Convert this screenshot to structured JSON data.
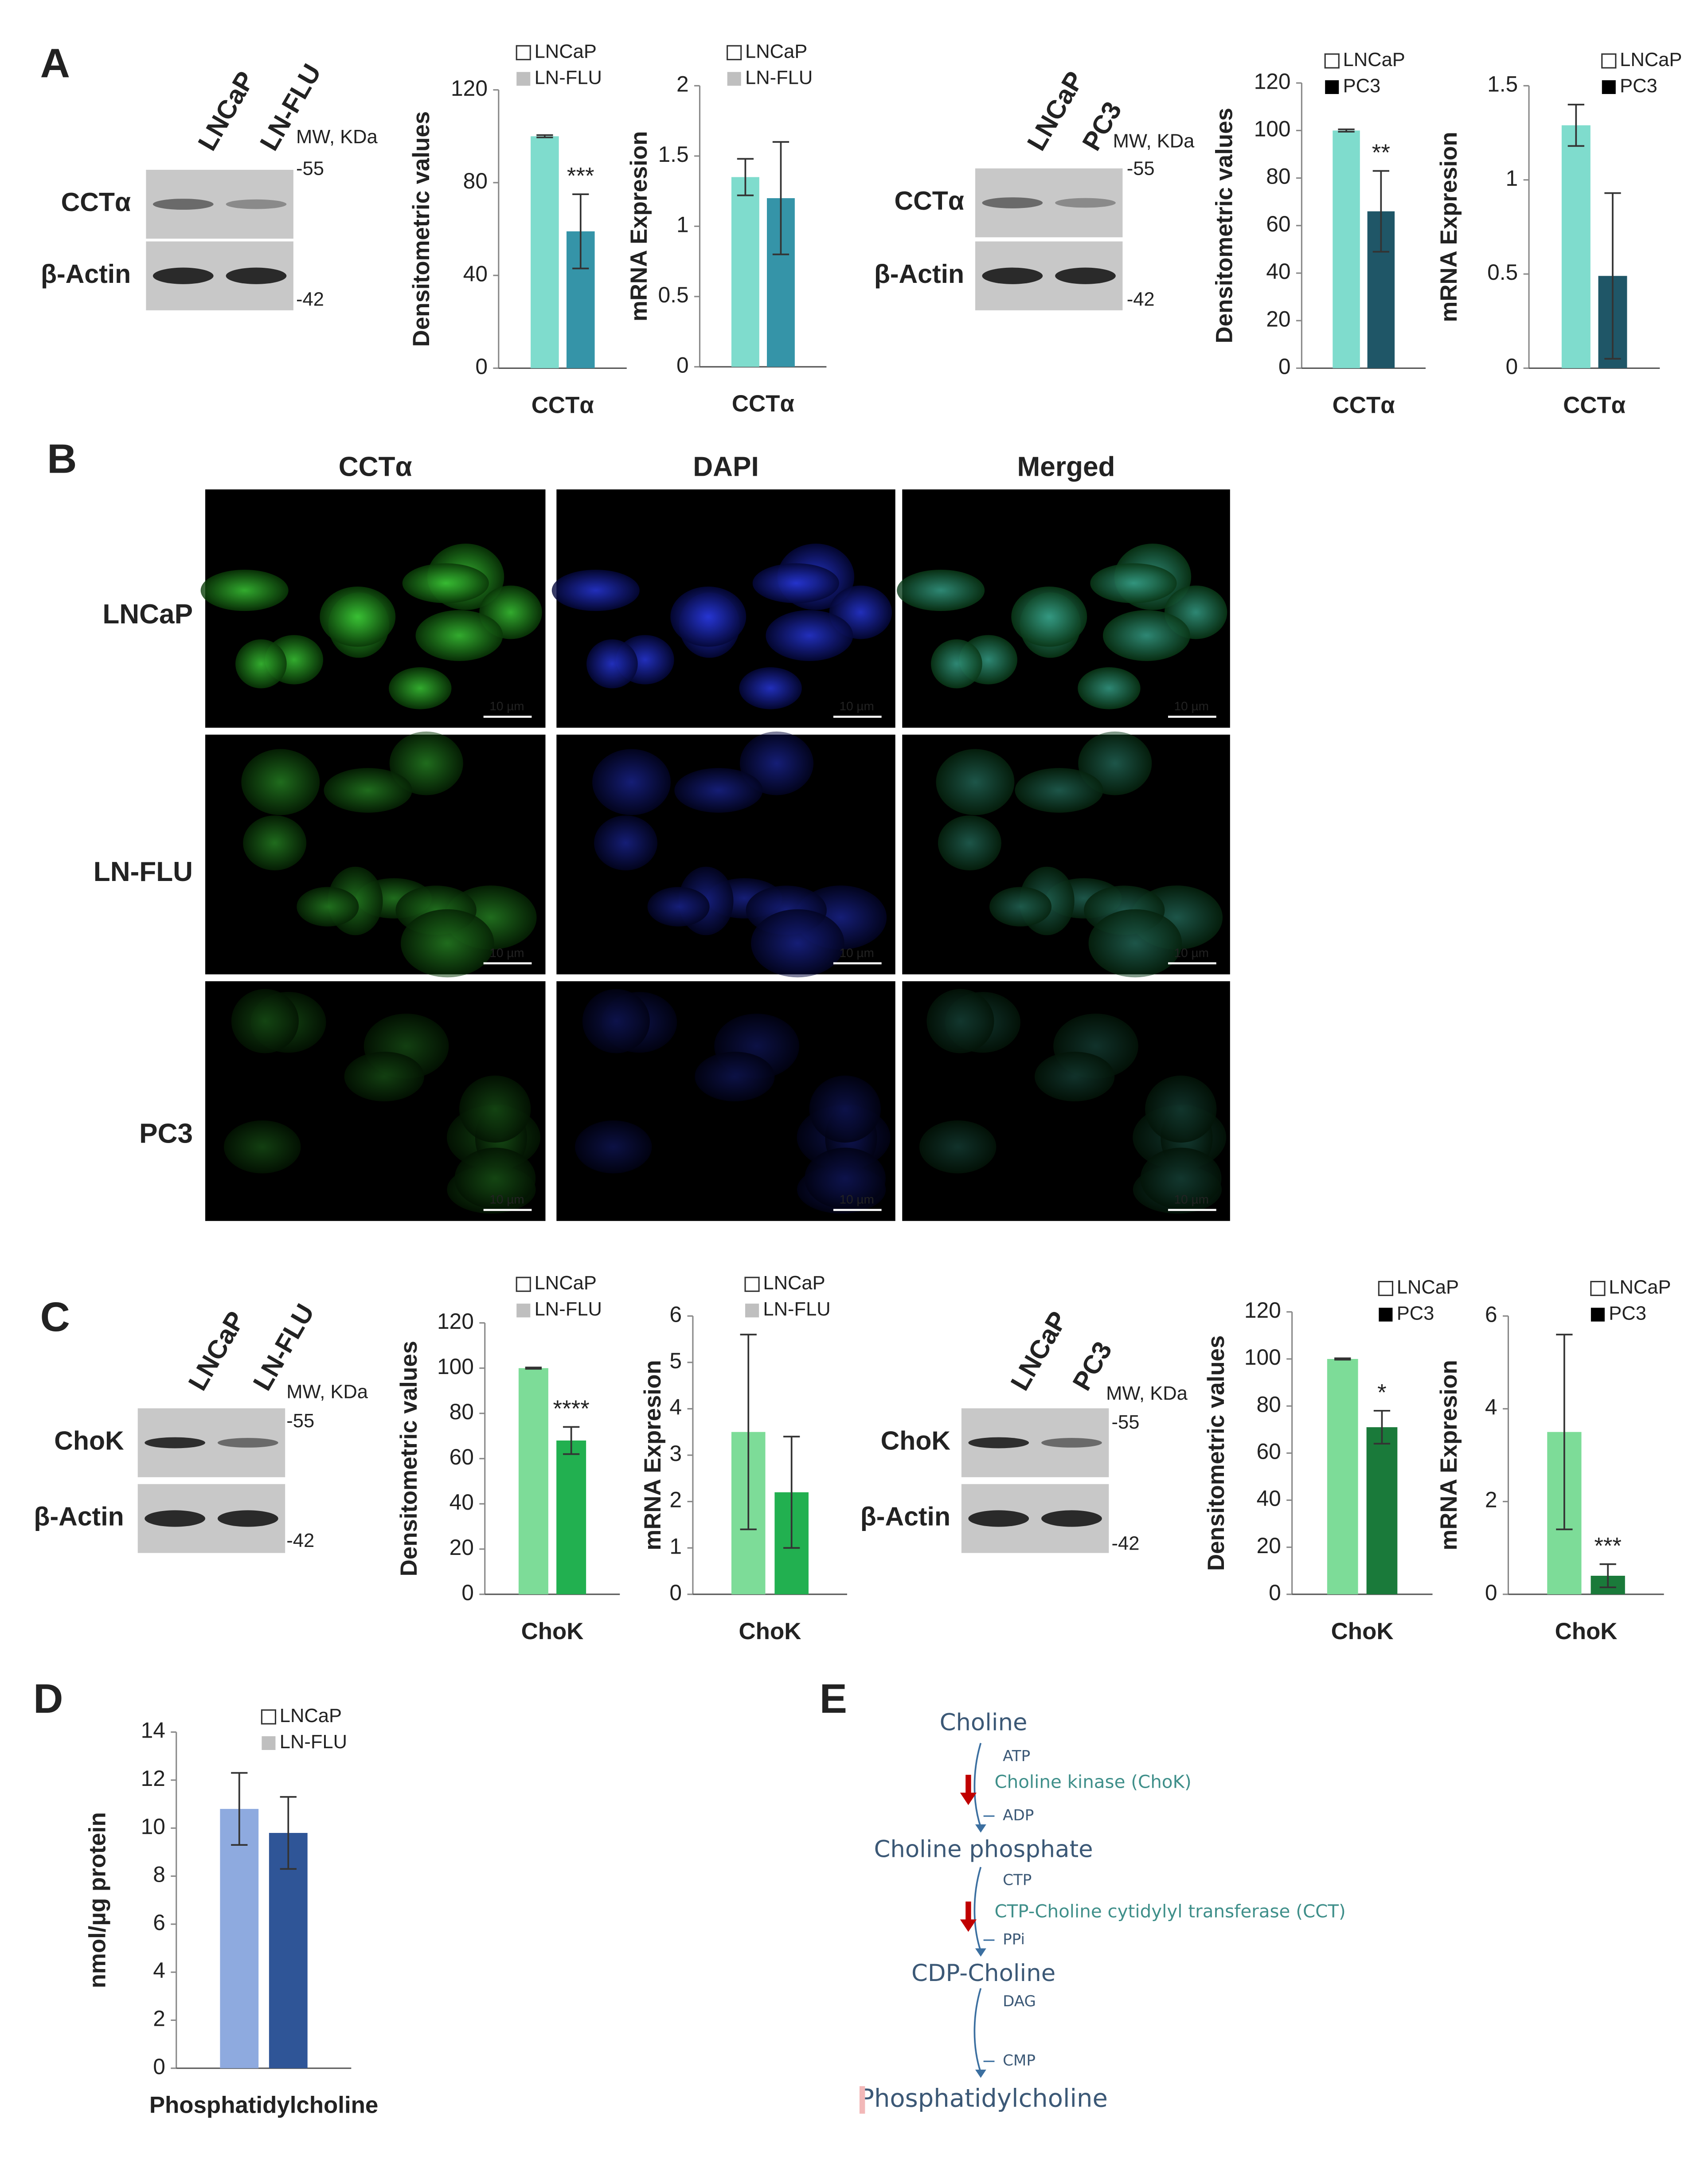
{
  "panels": [
    "A",
    "B",
    "C",
    "D",
    "E"
  ],
  "blots": [
    {
      "lanes": [
        "LNCaP",
        "LN-FLU"
      ],
      "unit": "MW, KDa",
      "markers": [
        "-55",
        "-42"
      ],
      "rows": [
        "CCTα",
        "β-Actin"
      ]
    },
    {
      "lanes": [
        "LNCaP",
        "PC3"
      ],
      "unit": "MW, KDa",
      "markers": [
        "-55",
        "-42"
      ],
      "rows": [
        "CCTα",
        "β-Actin"
      ]
    },
    {
      "lanes": [
        "LNCaP",
        "LN-FLU"
      ],
      "unit": "MW, KDa",
      "markers": [
        "-55",
        "-42"
      ],
      "rows": [
        "ChoK",
        "β-Actin"
      ]
    },
    {
      "lanes": [
        "LNCaP",
        "PC3"
      ],
      "unit": "MW, KDa",
      "markers": [
        "-55",
        "-42"
      ],
      "rows": [
        "ChoK",
        "β-Actin"
      ]
    }
  ],
  "microscopy": {
    "columns": [
      "CCTα",
      "DAPI",
      "Merged"
    ],
    "rows": [
      "LNCaP",
      "LN-FLU",
      "PC3"
    ],
    "scale_bar": "10 µm"
  },
  "pathway": {
    "metabolites": [
      "Choline",
      "Choline phosphate",
      "CDP-Choline",
      "Phosphatidylcholine"
    ],
    "enzymes": [
      "Choline kinase (ChoK)",
      "CTP-Choline cytidylyl transferase (CCT)"
    ],
    "cofactors": [
      [
        "ATP",
        "ADP"
      ],
      [
        "CTP",
        "PPi"
      ],
      [
        "DAG",
        "CMP"
      ]
    ]
  },
  "chart_data": [
    {
      "type": "bar",
      "categories": [
        "CCTα"
      ],
      "y_label": "Densitometric values",
      "ylim": [
        0,
        120
      ],
      "yticks": [
        0,
        40,
        80,
        120
      ],
      "legend_marker_colors": [
        "#ffffff",
        "#bfbfbf"
      ],
      "series": [
        {
          "name": "LNCaP",
          "color": "#7fdccd",
          "values": [
            100
          ],
          "errors": [
            0.5
          ]
        },
        {
          "name": "LN-FLU",
          "color": "#3594a8",
          "values": [
            59
          ],
          "errors": [
            16
          ],
          "significance": [
            "***"
          ]
        }
      ]
    },
    {
      "type": "bar",
      "categories": [
        "CCTα"
      ],
      "y_label": "mRNA Expresion",
      "ylim": [
        0,
        2
      ],
      "yticks": [
        0,
        0.5,
        1,
        1.5,
        2
      ],
      "legend_marker_colors": [
        "#ffffff",
        "#bfbfbf"
      ],
      "series": [
        {
          "name": "LNCaP",
          "color": "#7fdccd",
          "values": [
            1.35
          ],
          "errors": [
            0.13
          ]
        },
        {
          "name": "LN-FLU",
          "color": "#3594a8",
          "values": [
            1.2
          ],
          "errors": [
            0.4
          ]
        }
      ]
    },
    {
      "type": "bar",
      "categories": [
        "CCTα"
      ],
      "y_label": "Densitometric values",
      "ylim": [
        0,
        120
      ],
      "yticks": [
        0,
        20,
        40,
        60,
        80,
        100,
        120
      ],
      "legend_marker_colors": [
        "#ffffff",
        "#000000"
      ],
      "series": [
        {
          "name": "LNCaP",
          "color": "#7fdccd",
          "values": [
            100
          ],
          "errors": [
            0.5
          ]
        },
        {
          "name": "PC3",
          "color": "#1f5667",
          "values": [
            66
          ],
          "errors": [
            17
          ],
          "significance": [
            "**"
          ]
        }
      ]
    },
    {
      "type": "bar",
      "categories": [
        "CCTα"
      ],
      "y_label": "mRNA Expresion",
      "ylim": [
        0,
        1.5
      ],
      "yticks": [
        0,
        0.5,
        1,
        1.5
      ],
      "legend_marker_colors": [
        "#ffffff",
        "#000000"
      ],
      "series": [
        {
          "name": "LNCaP",
          "color": "#7fdccd",
          "values": [
            1.29
          ],
          "errors": [
            0.11
          ]
        },
        {
          "name": "PC3",
          "color": "#1f5667",
          "values": [
            0.49
          ],
          "errors": [
            0.44
          ]
        }
      ]
    },
    {
      "type": "bar",
      "categories": [
        "ChoK"
      ],
      "y_label": "Densitometric values",
      "ylim": [
        0,
        120
      ],
      "yticks": [
        0,
        20,
        40,
        60,
        80,
        100,
        120
      ],
      "legend_marker_colors": [
        "#ffffff",
        "#bfbfbf"
      ],
      "series": [
        {
          "name": "LNCaP",
          "color": "#7ddc98",
          "values": [
            100
          ],
          "errors": [
            0.3
          ]
        },
        {
          "name": "LN-FLU",
          "color": "#22b050",
          "values": [
            68
          ],
          "errors": [
            6
          ],
          "significance": [
            "****"
          ]
        }
      ]
    },
    {
      "type": "bar",
      "categories": [
        "ChoK"
      ],
      "y_label": "mRNA Expresion",
      "ylim": [
        0,
        6
      ],
      "yticks": [
        0,
        1,
        2,
        3,
        4,
        5,
        6
      ],
      "legend_marker_colors": [
        "#ffffff",
        "#bfbfbf"
      ],
      "series": [
        {
          "name": "LNCaP",
          "color": "#7ddc98",
          "values": [
            3.5
          ],
          "errors": [
            2.1
          ]
        },
        {
          "name": "LN-FLU",
          "color": "#22b050",
          "values": [
            2.2
          ],
          "errors": [
            1.2
          ]
        }
      ]
    },
    {
      "type": "bar",
      "categories": [
        "ChoK"
      ],
      "y_label": "Densitometric values",
      "ylim": [
        0,
        120
      ],
      "yticks": [
        0,
        20,
        40,
        60,
        80,
        100,
        120
      ],
      "legend_marker_colors": [
        "#ffffff",
        "#000000"
      ],
      "series": [
        {
          "name": "LNCaP",
          "color": "#7ddc98",
          "values": [
            100
          ],
          "errors": [
            0.3
          ]
        },
        {
          "name": "PC3",
          "color": "#1a7a3a",
          "values": [
            71
          ],
          "errors": [
            7
          ],
          "significance": [
            "*"
          ]
        }
      ]
    },
    {
      "type": "bar",
      "categories": [
        "ChoK"
      ],
      "y_label": "mRNA Expresion",
      "ylim": [
        0,
        6
      ],
      "yticks": [
        0,
        2,
        4,
        6
      ],
      "legend_marker_colors": [
        "#ffffff",
        "#000000"
      ],
      "series": [
        {
          "name": "LNCaP",
          "color": "#7ddc98",
          "values": [
            3.5
          ],
          "errors": [
            2.1
          ]
        },
        {
          "name": "PC3",
          "color": "#1a7a3a",
          "values": [
            0.4
          ],
          "errors": [
            0.25
          ],
          "significance": [
            "***"
          ]
        }
      ]
    },
    {
      "type": "bar",
      "categories": [
        "Phosphatidylcholine"
      ],
      "y_label": "nmol/µg protein",
      "ylim": [
        0,
        14
      ],
      "yticks": [
        0,
        2,
        4,
        6,
        8,
        10,
        12,
        14
      ],
      "legend_marker_colors": [
        "#ffffff",
        "#bfbfbf"
      ],
      "series": [
        {
          "name": "LNCaP",
          "color": "#8eaadf",
          "values": [
            10.8
          ],
          "errors": [
            1.5
          ]
        },
        {
          "name": "LN-FLU",
          "color": "#2f5597",
          "values": [
            9.8
          ],
          "errors": [
            1.5
          ]
        }
      ]
    }
  ]
}
